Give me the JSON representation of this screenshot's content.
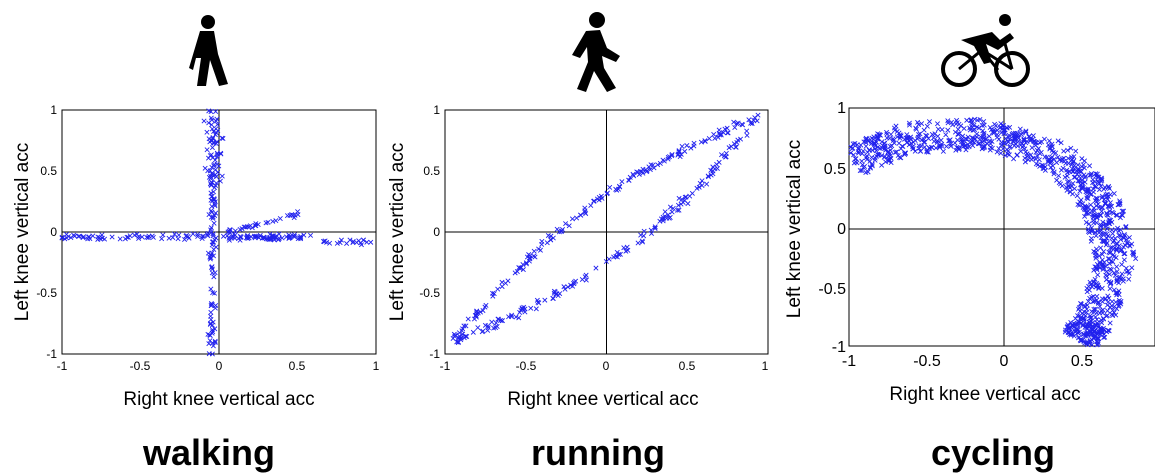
{
  "colors": {
    "marker": "#2222ee",
    "axis": "#000000",
    "background": "#ffffff"
  },
  "chart_data": [
    {
      "type": "scatter",
      "activity": "walking",
      "icon": "walking-person-icon",
      "xlabel": "Right knee vertical acc",
      "ylabel": "Left knee vertical acc",
      "xlim": [
        -1,
        1
      ],
      "ylim": [
        -1,
        1
      ],
      "xticks": [
        "-1",
        "-0.5",
        "0",
        "0.5",
        "1"
      ],
      "yticks": [
        "-1",
        "-0.5",
        "0",
        "0.5",
        "1"
      ],
      "marker": "x",
      "grid": false,
      "clusters": [
        {
          "shape": "vertical-band",
          "x_center": -0.04,
          "x_spread": 0.05,
          "y_range": [
            -1.0,
            1.0
          ]
        },
        {
          "shape": "horizontal-band",
          "y_center": -0.04,
          "y_spread": 0.03,
          "x_range": [
            -1.0,
            1.0
          ]
        },
        {
          "shape": "loop",
          "x_range": [
            0.05,
            0.52
          ],
          "y_range": [
            -0.05,
            0.15
          ]
        }
      ]
    },
    {
      "type": "scatter",
      "activity": "running",
      "icon": "running-person-icon",
      "xlabel": "Right knee vertical acc",
      "ylabel": "Left knee vertical acc",
      "xlim": [
        -1,
        1
      ],
      "ylim": [
        -1,
        1
      ],
      "xticks": [
        "-1",
        "-0.5",
        "0",
        "0.5",
        "1"
      ],
      "yticks": [
        "-1",
        "-0.5",
        "0",
        "0.5",
        "1"
      ],
      "marker": "x",
      "grid": false,
      "clusters": [
        {
          "shape": "diagonal-loop",
          "from": [
            -0.95,
            -0.9
          ],
          "to": [
            0.95,
            0.95
          ],
          "width": 0.18
        }
      ]
    },
    {
      "type": "scatter",
      "activity": "cycling",
      "icon": "cycling-person-icon",
      "xlabel": "Right knee vertical acc",
      "ylabel": "Left knee vertical acc",
      "xlim": [
        -1,
        1
      ],
      "ylim": [
        -1,
        1
      ],
      "xticks": [
        "-1",
        "-0.5",
        "0",
        "0.5"
      ],
      "yticks": [
        "-1",
        "-0.5",
        "0",
        "0.5",
        "1"
      ],
      "marker": "x",
      "grid": false,
      "clusters": [
        {
          "shape": "boomerang-band",
          "path": [
            [
              -0.98,
              0.55
            ],
            [
              -0.6,
              0.75
            ],
            [
              -0.1,
              0.78
            ],
            [
              0.35,
              0.6
            ],
            [
              0.65,
              0.2
            ],
            [
              0.75,
              -0.3
            ],
            [
              0.6,
              -0.8
            ],
            [
              0.5,
              -0.95
            ]
          ],
          "width": 0.26
        }
      ]
    }
  ]
}
